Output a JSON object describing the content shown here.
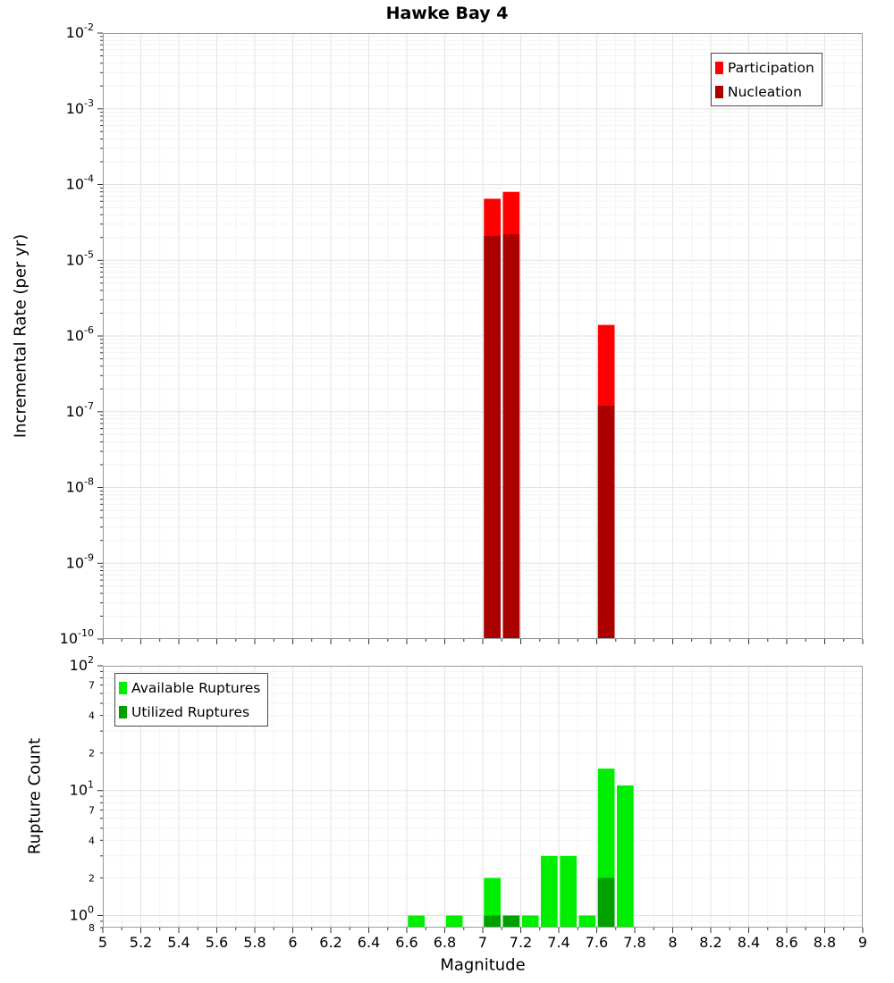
{
  "title": "Hawke Bay 4",
  "xlabel": "Magnitude",
  "style": {
    "grid_major": "#e2e2e2",
    "grid_minor": "#f3f3f3",
    "plot_border": "#9a9a9a",
    "tick_color": "#333333",
    "text_color": "#000000"
  },
  "chart_data": [
    {
      "type": "bar",
      "title": "Hawke Bay 4",
      "ylabel": "Incremental Rate (per yr)",
      "yscale": "log",
      "xlim": [
        5,
        9
      ],
      "ylim": [
        1e-10,
        0.01
      ],
      "bin_width": 0.1,
      "grid": true,
      "legend_position": "top-right",
      "series": [
        {
          "name": "Participation",
          "color": "#ff0000",
          "points": [
            [
              7.05,
              6.5e-05
            ],
            [
              7.15,
              8e-05
            ],
            [
              7.65,
              1.4e-06
            ]
          ]
        },
        {
          "name": "Nucleation",
          "color": "#aa0000",
          "points": [
            [
              7.05,
              2.1e-05
            ],
            [
              7.15,
              2.2e-05
            ],
            [
              7.65,
              1.2e-07
            ]
          ]
        }
      ]
    },
    {
      "type": "bar",
      "xlabel": "Magnitude",
      "ylabel": "Rupture Count",
      "yscale": "log",
      "xlim": [
        5,
        9
      ],
      "ylim": [
        0.8,
        100
      ],
      "bin_width": 0.1,
      "grid": true,
      "legend_position": "top-left",
      "series": [
        {
          "name": "Available Ruptures",
          "color": "#00ee00",
          "points": [
            [
              6.65,
              1
            ],
            [
              6.85,
              1
            ],
            [
              7.05,
              2
            ],
            [
              7.15,
              1
            ],
            [
              7.25,
              1
            ],
            [
              7.35,
              3
            ],
            [
              7.45,
              3
            ],
            [
              7.55,
              1
            ],
            [
              7.65,
              15
            ],
            [
              7.75,
              11
            ]
          ]
        },
        {
          "name": "Utilized Ruptures",
          "color": "#00a000",
          "points": [
            [
              7.05,
              1
            ],
            [
              7.15,
              1
            ],
            [
              7.65,
              2
            ]
          ]
        }
      ]
    }
  ]
}
